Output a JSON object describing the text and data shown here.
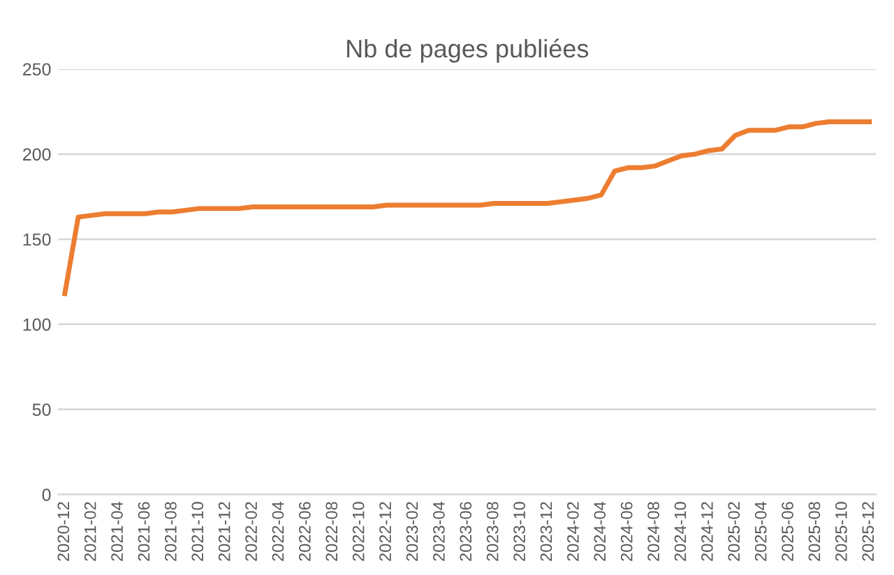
{
  "chart_data": {
    "type": "line",
    "title": "Nb de pages publiées",
    "categories": [
      "2020-12",
      null,
      "2021-02",
      null,
      "2021-04",
      null,
      "2021-06",
      null,
      "2021-08",
      null,
      "2021-10",
      null,
      "2021-12",
      null,
      "2022-02",
      null,
      "2022-04",
      null,
      "2022-06",
      null,
      "2022-08",
      null,
      "2022-10",
      null,
      "2022-12",
      null,
      "2023-02",
      null,
      "2023-04",
      null,
      "2023-06",
      null,
      "2023-08",
      null,
      "2023-10",
      null,
      "2023-12",
      null,
      "2024-02",
      null,
      "2024-04",
      null,
      "2024-06",
      null,
      "2024-08",
      null,
      "2024-10",
      null,
      "2024-12",
      null,
      "2025-02",
      null,
      "2025-04",
      null,
      "2025-06",
      null,
      "2025-08",
      null,
      "2025-10",
      null,
      "2025-12"
    ],
    "series": [
      {
        "color": "#ed7d31",
        "values": [
          118,
          163,
          164,
          165,
          165,
          165,
          165,
          166,
          166,
          167,
          168,
          168,
          168,
          168,
          169,
          169,
          169,
          169,
          169,
          169,
          169,
          169,
          169,
          169,
          170,
          170,
          170,
          170,
          170,
          170,
          170,
          170,
          171,
          171,
          171,
          171,
          171,
          172,
          173,
          174,
          176,
          190,
          192,
          192,
          193,
          196,
          199,
          200,
          202,
          203,
          211,
          214,
          214,
          214,
          216,
          216,
          218,
          219,
          219,
          219,
          219
        ]
      }
    ],
    "ylim": [
      0,
      250
    ],
    "yticks": [
      0,
      50,
      100,
      150,
      200,
      250
    ],
    "grid": "y",
    "marker": "none",
    "line_style": "solid"
  }
}
